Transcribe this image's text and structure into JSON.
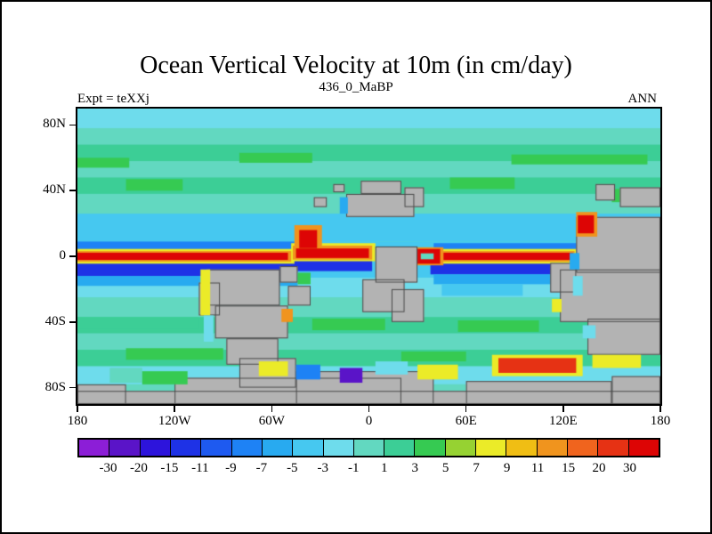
{
  "header": {
    "title": "Ocean Vertical Velocity at 10m (in cm/day)",
    "subtitle": "436_0_MaBP",
    "left_annotation": "Expt = teXXj",
    "right_annotation": "ANN"
  },
  "chart_data": {
    "type": "heatmap",
    "subtype": "filled_contour_world_map",
    "title": "Ocean Vertical Velocity at 10m (in cm/day)",
    "subtitle": "436_0_MaBP",
    "experiment": "Expt = teXXj",
    "season": "ANN",
    "units": "cm/day",
    "x_axis": {
      "range_deg": [
        -180,
        180
      ],
      "ticks": [
        {
          "label": "180",
          "lon": -180
        },
        {
          "label": "120W",
          "lon": -120
        },
        {
          "label": "60W",
          "lon": -60
        },
        {
          "label": "0",
          "lon": 0
        },
        {
          "label": "60E",
          "lon": 60
        },
        {
          "label": "120E",
          "lon": 120
        },
        {
          "label": "180",
          "lon": 180
        }
      ]
    },
    "y_axis": {
      "range_deg": [
        -90,
        90
      ],
      "ticks": [
        {
          "label": "80N",
          "lat": 80
        },
        {
          "label": "40N",
          "lat": 40
        },
        {
          "label": "0",
          "lat": 0
        },
        {
          "label": "40S",
          "lat": -40
        },
        {
          "label": "80S",
          "lat": -80
        }
      ]
    },
    "colorbar": {
      "levels": [
        -30,
        -20,
        -15,
        -11,
        -9,
        -7,
        -5,
        -3,
        -1,
        1,
        3,
        5,
        7,
        9,
        11,
        15,
        20,
        30
      ],
      "tick_labels": [
        "-30",
        "-20",
        "-15",
        "-11",
        "-9",
        "-7",
        "-5",
        "-3",
        "-1",
        "1",
        "3",
        "5",
        "7",
        "9",
        "11",
        "15",
        "20",
        "30"
      ],
      "colors": [
        "#8c1ed7",
        "#5a14c8",
        "#2d14dc",
        "#1e32e6",
        "#1e5af0",
        "#1e82f5",
        "#28aaf0",
        "#46c8f0",
        "#6edcec",
        "#62d8c0",
        "#3cce96",
        "#36ca52",
        "#96d232",
        "#ebeb28",
        "#f0be14",
        "#f0941e",
        "#f0641e",
        "#e63214",
        "#dd0505"
      ]
    },
    "land_color": "#b3b3b3",
    "land_outline_color": "#4a4a4a",
    "field": {
      "background_value": 0,
      "bands": [
        {
          "lat": [
            78,
            90
          ],
          "v": -2
        },
        {
          "lat": [
            68,
            78
          ],
          "v": 0
        },
        {
          "lat": [
            58,
            68
          ],
          "v": 2
        },
        {
          "lat": [
            48,
            58
          ],
          "v": 0
        },
        {
          "lat": [
            38,
            48
          ],
          "v": 2
        },
        {
          "lat": [
            26,
            38
          ],
          "v": 0
        },
        {
          "lat": [
            9,
            26
          ],
          "v": -4
        },
        {
          "lat": [
            -13,
            9
          ],
          "v": -4
        },
        {
          "lat": [
            -25,
            -13
          ],
          "v": -2
        },
        {
          "lat": [
            -37,
            -25
          ],
          "v": 0
        },
        {
          "lat": [
            -47,
            -37
          ],
          "v": 2
        },
        {
          "lat": [
            -57,
            -47
          ],
          "v": 0
        },
        {
          "lat": [
            -67,
            -57
          ],
          "v": 2
        },
        {
          "lat": [
            -78,
            -67
          ],
          "v": -2
        },
        {
          "lat": [
            -90,
            -78
          ],
          "v": 0
        }
      ],
      "features": [
        {
          "lon": [
            -80,
            -35
          ],
          "lat": [
            57,
            63
          ],
          "v": 4
        },
        {
          "lon": [
            88,
            172
          ],
          "lat": [
            56,
            62
          ],
          "v": 4
        },
        {
          "lon": [
            -180,
            -148
          ],
          "lat": [
            54,
            60
          ],
          "v": 4
        },
        {
          "lon": [
            -150,
            -115
          ],
          "lat": [
            40,
            47
          ],
          "v": 4
        },
        {
          "lon": [
            50,
            90
          ],
          "lat": [
            41,
            48
          ],
          "v": 4
        },
        {
          "lon": [
            150,
            180
          ],
          "lat": [
            33,
            41
          ],
          "v": 4
        },
        {
          "lon": [
            -180,
            -46
          ],
          "lat": [
            2.2,
            9
          ],
          "v": -9
        },
        {
          "lon": [
            40,
            130
          ],
          "lat": [
            2.2,
            8
          ],
          "v": -9
        },
        {
          "lon": [
            -180,
            -46
          ],
          "lat": [
            -12,
            -2.2
          ],
          "v": -13
        },
        {
          "lon": [
            38,
            130
          ],
          "lat": [
            -11,
            -2.2
          ],
          "v": -13
        },
        {
          "lon": [
            -48,
            2
          ],
          "lat": [
            -9,
            -1
          ],
          "v": -13
        },
        {
          "lon": [
            -180,
            -44
          ],
          "lat": [
            -18,
            -12
          ],
          "v": -6
        },
        {
          "lon": [
            40,
            132
          ],
          "lat": [
            -17,
            -11
          ],
          "v": -6
        },
        {
          "lon": [
            45,
            95
          ],
          "lat": [
            -24,
            -17
          ],
          "v": -4
        },
        {
          "lon": [
            -180,
            -46
          ],
          "lat": [
            -4.5,
            4.5
          ],
          "v": 8
        },
        {
          "lon": [
            -48,
            4
          ],
          "lat": [
            -3,
            8
          ],
          "v": 8
        },
        {
          "lon": [
            44,
            128
          ],
          "lat": [
            -4.5,
            4.5
          ],
          "v": 8
        },
        {
          "lon": [
            -180,
            -48
          ],
          "lat": [
            -3.2,
            3.2
          ],
          "v": 12
        },
        {
          "lon": [
            -47,
            2
          ],
          "lat": [
            -2,
            6.5
          ],
          "v": 12
        },
        {
          "lon": [
            -46,
            -29
          ],
          "lat": [
            4,
            19
          ],
          "v": 12
        },
        {
          "lon": [
            44,
            127
          ],
          "lat": [
            -3.2,
            3.2
          ],
          "v": 12
        },
        {
          "lon": [
            -180,
            -50
          ],
          "lat": [
            -2.2,
            2.2
          ],
          "v": 40
        },
        {
          "lon": [
            -45,
            0
          ],
          "lat": [
            -1,
            4.8
          ],
          "v": 40
        },
        {
          "lon": [
            -43,
            -32
          ],
          "lat": [
            5,
            16
          ],
          "v": 40
        },
        {
          "lon": [
            46,
            126
          ],
          "lat": [
            -2.2,
            2.2
          ],
          "v": 40
        },
        {
          "lon": [
            27,
            46
          ],
          "lat": [
            -5.5,
            5.5
          ],
          "v": 12
        },
        {
          "lon": [
            28,
            44
          ],
          "lat": [
            -4.5,
            4.5
          ],
          "v": 40
        },
        {
          "lon": [
            32,
            40
          ],
          "lat": [
            -1.8,
            1.8
          ],
          "v": 0
        },
        {
          "lon": [
            -180,
            -105
          ],
          "lat": [
            -44,
            -37
          ],
          "v": 2
        },
        {
          "lon": [
            -35,
            10
          ],
          "lat": [
            -45,
            -38
          ],
          "v": 4
        },
        {
          "lon": [
            55,
            105
          ],
          "lat": [
            -46,
            -39
          ],
          "v": 4
        },
        {
          "lon": [
            -180,
            180
          ],
          "lat": [
            -64,
            -57
          ],
          "v": 2
        },
        {
          "lon": [
            -150,
            -90
          ],
          "lat": [
            -63,
            -56
          ],
          "v": 4
        },
        {
          "lon": [
            20,
            60
          ],
          "lat": [
            -64,
            -58
          ],
          "v": 4
        }
      ],
      "land": [
        {
          "lon": [
            -14,
            28
          ],
          "lat": [
            24,
            38
          ]
        },
        {
          "lon": [
            -5,
            20
          ],
          "lat": [
            38,
            46
          ]
        },
        {
          "lon": [
            22,
            34
          ],
          "lat": [
            30,
            42
          ]
        },
        {
          "lon": [
            -34,
            -26
          ],
          "lat": [
            30,
            36
          ]
        },
        {
          "lon": [
            -22,
            -15
          ],
          "lat": [
            39,
            44
          ]
        },
        {
          "lon": [
            4,
            30
          ],
          "lat": [
            6,
            -16
          ]
        },
        {
          "lon": [
            -4,
            22
          ],
          "lat": [
            -14,
            -34
          ]
        },
        {
          "lon": [
            14,
            34
          ],
          "lat": [
            -20,
            -40
          ]
        },
        {
          "lon": [
            -100,
            -55
          ],
          "lat": [
            -8,
            -30
          ]
        },
        {
          "lon": [
            -95,
            -50
          ],
          "lat": [
            -30,
            -50
          ]
        },
        {
          "lon": [
            -88,
            -56
          ],
          "lat": [
            -50,
            -66
          ]
        },
        {
          "lon": [
            -105,
            -92
          ],
          "lat": [
            -16,
            -36
          ]
        },
        {
          "lon": [
            -80,
            -45
          ],
          "lat": [
            -62,
            -80
          ]
        },
        {
          "lon": [
            -55,
            -44
          ],
          "lat": [
            -6,
            -16
          ]
        },
        {
          "lon": [
            -50,
            -36
          ],
          "lat": [
            -18,
            -30
          ]
        },
        {
          "lon": [
            -180,
            180
          ],
          "lat": [
            -82,
            -90
          ]
        },
        {
          "lon": [
            -120,
            20
          ],
          "lat": [
            -74,
            -90
          ]
        },
        {
          "lon": [
            -45,
            40
          ],
          "lat": [
            -70,
            -90
          ]
        },
        {
          "lon": [
            60,
            150
          ],
          "lat": [
            -76,
            -90
          ]
        },
        {
          "lon": [
            150,
            180
          ],
          "lat": [
            -73,
            -90
          ]
        },
        {
          "lon": [
            -180,
            -150
          ],
          "lat": [
            -78,
            -90
          ]
        },
        {
          "lon": [
            128,
            180
          ],
          "lat": [
            24,
            -10
          ]
        },
        {
          "lon": [
            118,
            180
          ],
          "lat": [
            -8,
            -40
          ]
        },
        {
          "lon": [
            135,
            180
          ],
          "lat": [
            -38,
            -60
          ]
        },
        {
          "lon": [
            155,
            180
          ],
          "lat": [
            30,
            42
          ]
        },
        {
          "lon": [
            140,
            152
          ],
          "lat": [
            34,
            44
          ]
        },
        {
          "lon": [
            112,
            128
          ],
          "lat": [
            -4,
            -22
          ]
        }
      ],
      "coastal_overlays": [
        {
          "lon": [
            128,
            141
          ],
          "lat": [
            12,
            27
          ],
          "v": 12
        },
        {
          "lon": [
            129,
            139
          ],
          "lat": [
            14,
            25
          ],
          "v": 40
        },
        {
          "lon": [
            124,
            130
          ],
          "lat": [
            2,
            -8
          ],
          "v": -6
        },
        {
          "lon": [
            126,
            132
          ],
          "lat": [
            -12,
            -24
          ],
          "v": -2
        },
        {
          "lon": [
            113,
            119
          ],
          "lat": [
            -26,
            -34
          ],
          "v": 8
        },
        {
          "lon": [
            132,
            140
          ],
          "lat": [
            -42,
            -50
          ],
          "v": -2
        },
        {
          "lon": [
            76,
            132
          ],
          "lat": [
            -60,
            -73
          ],
          "v": 8
        },
        {
          "lon": [
            80,
            128
          ],
          "lat": [
            -62,
            -71
          ],
          "v": 25
        },
        {
          "lon": [
            -68,
            -50
          ],
          "lat": [
            -64,
            -73
          ],
          "v": 8
        },
        {
          "lon": [
            -45,
            -30
          ],
          "lat": [
            -66,
            -75
          ],
          "v": -8
        },
        {
          "lon": [
            -18,
            -4
          ],
          "lat": [
            -68,
            -77
          ],
          "v": -22
        },
        {
          "lon": [
            4,
            24
          ],
          "lat": [
            -64,
            -72
          ],
          "v": -2
        },
        {
          "lon": [
            30,
            55
          ],
          "lat": [
            -66,
            -75
          ],
          "v": 8
        },
        {
          "lon": [
            138,
            168
          ],
          "lat": [
            -60,
            -68
          ],
          "v": 8
        },
        {
          "lon": [
            -160,
            -140
          ],
          "lat": [
            -68,
            -77
          ],
          "v": 0
        },
        {
          "lon": [
            -140,
            -112
          ],
          "lat": [
            -70,
            -78
          ],
          "v": 4
        },
        {
          "lon": [
            -104,
            -98
          ],
          "lat": [
            -8,
            -36
          ],
          "v": 8
        },
        {
          "lon": [
            -102,
            -96
          ],
          "lat": [
            -36,
            -52
          ],
          "v": -2
        },
        {
          "lon": [
            -18,
            -13
          ],
          "lat": [
            26,
            36
          ],
          "v": -6
        },
        {
          "lon": [
            -54,
            -47
          ],
          "lat": [
            -32,
            -40
          ],
          "v": 12
        },
        {
          "lon": [
            -44,
            -36
          ],
          "lat": [
            -10,
            -17
          ],
          "v": 4
        }
      ]
    }
  }
}
